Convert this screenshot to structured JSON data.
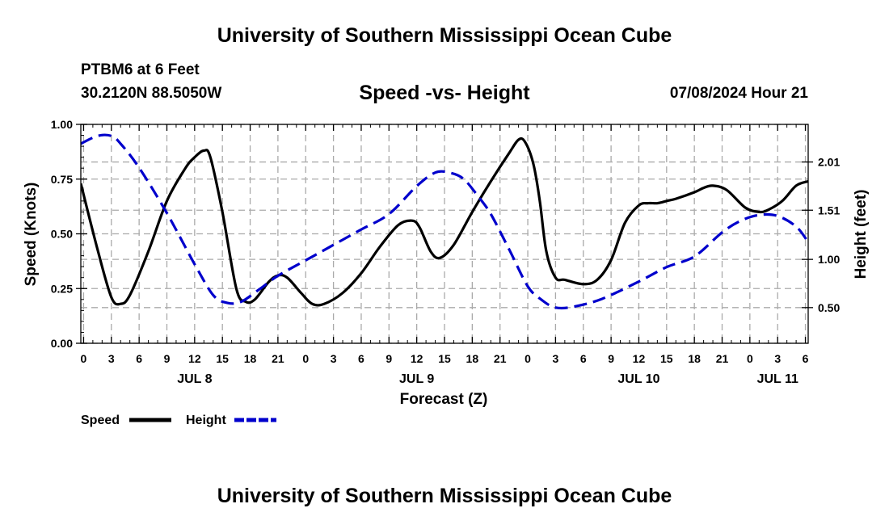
{
  "header": {
    "title": "University of Southern Mississippi Ocean Cube",
    "station": "PTBM6 at 6 Feet",
    "coords": "30.2120N  88.5050W",
    "subtitle": "Speed -vs- Height",
    "datetime": "07/08/2024 Hour 21"
  },
  "footer": {
    "title": "University of Southern Mississippi Ocean Cube"
  },
  "chart_data": {
    "type": "line",
    "title": "Speed -vs- Height",
    "xlabel": "Forecast (Z)",
    "ylabel": "Speed (Knots)",
    "y2label": "Height (feet)",
    "x_unit": "hours since JUL 8 00Z",
    "xlim": [
      -0.3,
      78.3
    ],
    "ylim": [
      0,
      1
    ],
    "y2lim": [
      0.13,
      2.4
    ],
    "y_ticks": [
      "0.00",
      "0.25",
      "0.50",
      "0.75",
      "1.00"
    ],
    "y2_ticks": [
      "0.50",
      "1.00",
      "1.51",
      "2.01"
    ],
    "x_tick_labels": [
      "0",
      "3",
      "6",
      "9",
      "12",
      "15",
      "18",
      "21",
      "0",
      "3",
      "6",
      "9",
      "12",
      "15",
      "18",
      "21",
      "0",
      "3",
      "6",
      "9",
      "12",
      "15",
      "18",
      "21",
      "0",
      "3",
      "6"
    ],
    "date_labels": [
      {
        "label": "JUL 8",
        "hour": 12
      },
      {
        "label": "JUL 9",
        "hour": 36
      },
      {
        "label": "JUL 10",
        "hour": 60
      },
      {
        "label": "JUL 11",
        "hour": 75
      }
    ],
    "grid": true,
    "legend_position": "bottom-left",
    "series": [
      {
        "name": "Speed",
        "axis": "left",
        "color": "#000000",
        "style": "solid",
        "x": [
          -0.3,
          1.5,
          3,
          4,
          5,
          7,
          9,
          11,
          12,
          13,
          13.7,
          15,
          16.5,
          17.5,
          18.5,
          20,
          21,
          22,
          23.5,
          24.7,
          26,
          28,
          30,
          32,
          34,
          35.5,
          36.3,
          37.5,
          38.5,
          40,
          42,
          44,
          46,
          47,
          47.7,
          48.6,
          49.3,
          50,
          51,
          52,
          54,
          55.5,
          57,
          58.5,
          60,
          61,
          62,
          63,
          64,
          66,
          67,
          68,
          69.5,
          71.5,
          73,
          74,
          75.5,
          77,
          78.3
        ],
        "values": [
          0.73,
          0.43,
          0.21,
          0.18,
          0.22,
          0.42,
          0.65,
          0.8,
          0.85,
          0.88,
          0.85,
          0.6,
          0.25,
          0.19,
          0.2,
          0.28,
          0.31,
          0.3,
          0.23,
          0.18,
          0.18,
          0.23,
          0.32,
          0.44,
          0.54,
          0.56,
          0.53,
          0.42,
          0.39,
          0.45,
          0.6,
          0.74,
          0.87,
          0.93,
          0.92,
          0.82,
          0.65,
          0.42,
          0.3,
          0.29,
          0.27,
          0.29,
          0.38,
          0.55,
          0.63,
          0.64,
          0.64,
          0.65,
          0.66,
          0.69,
          0.71,
          0.72,
          0.7,
          0.62,
          0.6,
          0.61,
          0.65,
          0.72,
          0.74
        ]
      },
      {
        "name": "Height",
        "axis": "right",
        "color": "#0000cc",
        "style": "dashed",
        "x": [
          -0.3,
          1.5,
          3,
          4,
          6,
          9,
          12,
          14,
          15.5,
          17,
          19,
          21,
          24,
          27,
          30,
          33,
          36,
          38,
          39.5,
          41,
          42.5,
          44,
          46,
          48,
          49.5,
          51,
          53,
          56,
          60,
          63,
          66,
          69,
          71,
          73,
          75,
          77,
          78.3
        ],
        "values": [
          2.2,
          2.28,
          2.28,
          2.2,
          1.95,
          1.48,
          0.95,
          0.63,
          0.55,
          0.56,
          0.69,
          0.83,
          0.99,
          1.15,
          1.31,
          1.47,
          1.76,
          1.9,
          1.9,
          1.84,
          1.67,
          1.47,
          1.1,
          0.72,
          0.58,
          0.5,
          0.51,
          0.59,
          0.77,
          0.92,
          1.03,
          1.28,
          1.4,
          1.46,
          1.45,
          1.34,
          1.18
        ]
      }
    ]
  }
}
